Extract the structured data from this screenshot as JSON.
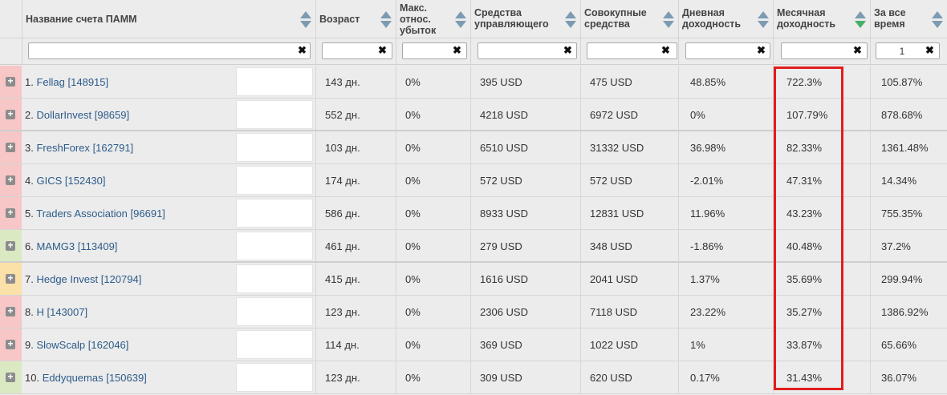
{
  "columns": [
    {
      "key": "name",
      "label": "Название счета ПАММ"
    },
    {
      "key": "age",
      "label": "Возраст"
    },
    {
      "key": "maxloss",
      "label": "Макс.\nотнос.\nубыток"
    },
    {
      "key": "mgrfunds",
      "label": "Средства\nуправляющего"
    },
    {
      "key": "total",
      "label": "Совокупные\nсредства"
    },
    {
      "key": "daily",
      "label": "Дневная\nдоходность"
    },
    {
      "key": "monthly",
      "label": "Месячная\nдоходность"
    },
    {
      "key": "alltime",
      "label": "За все\nвремя"
    }
  ],
  "filters": {
    "name": "",
    "age": "",
    "maxloss": "",
    "mgrfunds": "",
    "total": "",
    "daily": "",
    "monthly": "",
    "alltime": "1",
    "clear_glyph": "✖"
  },
  "expand_glyph": "+",
  "colors": {
    "red": "#f7c6c6",
    "green": "#dbe9c3",
    "orange": "#fbe0a8",
    "highlight": "#e11d1d",
    "sort_active": "#46b06b",
    "sort_inactive": "#7c9bb2"
  },
  "rows": [
    {
      "idx": "1.",
      "name": "Fellag",
      "id": "[148915]",
      "age": "143 дн.",
      "maxloss": "0%",
      "mgrfunds": "395 USD",
      "total": "475 USD",
      "daily": "48.85%",
      "monthly": "722.3%",
      "alltime": "105.87%",
      "status": "red"
    },
    {
      "idx": "2.",
      "name": "DollarInvest",
      "id": "[98659]",
      "age": "552 дн.",
      "maxloss": "0%",
      "mgrfunds": "4218 USD",
      "total": "6972 USD",
      "daily": "0%",
      "monthly": "107.79%",
      "alltime": "878.68%",
      "status": "red"
    },
    {
      "idx": "3.",
      "name": "FreshForex",
      "id": "[162791]",
      "age": "103 дн.",
      "maxloss": "0%",
      "mgrfunds": "6510 USD",
      "total": "31332 USD",
      "daily": "36.98%",
      "monthly": "82.33%",
      "alltime": "1361.48%",
      "status": "red"
    },
    {
      "idx": "4.",
      "name": "GICS",
      "id": "[152430]",
      "age": "174 дн.",
      "maxloss": "0%",
      "mgrfunds": "572 USD",
      "total": "572 USD",
      "daily": "-2.01%",
      "monthly": "47.31%",
      "alltime": "14.34%",
      "status": "red"
    },
    {
      "idx": "5.",
      "name": "Traders Association",
      "id": "[96691]",
      "age": "586 дн.",
      "maxloss": "0%",
      "mgrfunds": "8933 USD",
      "total": "12831 USD",
      "daily": "11.96%",
      "monthly": "43.23%",
      "alltime": "755.35%",
      "status": "red"
    },
    {
      "idx": "6.",
      "name": "MAMG3",
      "id": "[113409]",
      "age": "461 дн.",
      "maxloss": "0%",
      "mgrfunds": "279 USD",
      "total": "348 USD",
      "daily": "-1.86%",
      "monthly": "40.48%",
      "alltime": "37.2%",
      "status": "green"
    },
    {
      "idx": "7.",
      "name": "Hedge Invest",
      "id": "[120794]",
      "age": "415 дн.",
      "maxloss": "0%",
      "mgrfunds": "1616 USD",
      "total": "2041 USD",
      "daily": "1.37%",
      "monthly": "35.69%",
      "alltime": "299.94%",
      "status": "orange"
    },
    {
      "idx": "8.",
      "name": "H",
      "id": "[143007]",
      "age": "123 дн.",
      "maxloss": "0%",
      "mgrfunds": "2306 USD",
      "total": "7118 USD",
      "daily": "23.22%",
      "monthly": "35.27%",
      "alltime": "1386.92%",
      "status": "red"
    },
    {
      "idx": "9.",
      "name": "SlowScalp",
      "id": "[162046]",
      "age": "114 дн.",
      "maxloss": "0%",
      "mgrfunds": "369 USD",
      "total": "1022 USD",
      "daily": "1%",
      "monthly": "33.87%",
      "alltime": "65.66%",
      "status": "red"
    },
    {
      "idx": "10.",
      "name": "Eddyquemas",
      "id": "[150639]",
      "age": "123 дн.",
      "maxloss": "0%",
      "mgrfunds": "309 USD",
      "total": "620 USD",
      "daily": "0.17%",
      "monthly": "31.43%",
      "alltime": "36.07%",
      "status": "green"
    }
  ]
}
